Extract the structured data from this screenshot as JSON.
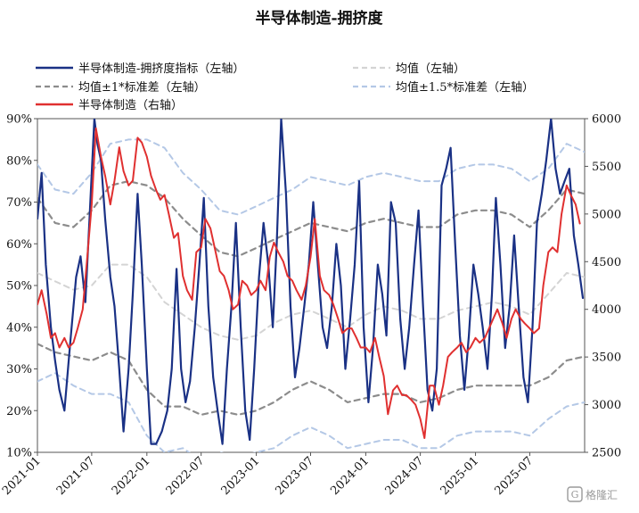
{
  "chart_data": {
    "type": "line",
    "title": "半导体制造-拥挤度",
    "xlabel": "",
    "ylabel_left": "",
    "ylabel_right": "",
    "x_ticks": [
      "2021-01",
      "2021-07",
      "2022-01",
      "2022-07",
      "2023-01",
      "2023-07",
      "2024-01",
      "2024-07",
      "2025-01",
      "2025-07"
    ],
    "x_range": [
      "2021-01-01",
      "2025-12-31"
    ],
    "y_left_ticks": [
      "10%",
      "20%",
      "30%",
      "40%",
      "50%",
      "60%",
      "70%",
      "80%",
      "90%"
    ],
    "y_left_range": [
      0.1,
      0.9
    ],
    "y_right_ticks": [
      "2500",
      "3000",
      "3500",
      "4000",
      "4500",
      "5000",
      "5500",
      "6000"
    ],
    "y_right_range": [
      2500,
      6000
    ],
    "grid": false,
    "legend_position": "top",
    "legend": [
      {
        "label": "半导体制造-拥挤度指标（左轴）",
        "color": "#1a3185",
        "style": "solid"
      },
      {
        "label": "均值（左轴）",
        "color": "#d4d4d4",
        "style": "dashed"
      },
      {
        "label": "均值±1*标准差（左轴）",
        "color": "#8c8c8c",
        "style": "dashed"
      },
      {
        "label": "均值±1.5*标准差（左轴）",
        "color": "#b4c8e6",
        "style": "dashed"
      },
      {
        "label": "半导体制造（右轴）",
        "color": "#e03030",
        "style": "solid"
      }
    ],
    "series": [
      {
        "key": "crowding",
        "name": "半导体制造-拥挤度指标（左轴）",
        "axis": "left",
        "color": "#1a3185",
        "x": [
          "2021-01-01",
          "2021-01-15",
          "2021-01-29",
          "2021-02-15",
          "2021-03-01",
          "2021-03-15",
          "2021-04-01",
          "2021-04-20",
          "2021-05-10",
          "2021-05-25",
          "2021-06-10",
          "2021-06-25",
          "2021-07-10",
          "2021-07-20",
          "2021-08-01",
          "2021-08-15",
          "2021-09-01",
          "2021-09-15",
          "2021-10-01",
          "2021-10-15",
          "2021-11-01",
          "2021-11-15",
          "2021-12-01",
          "2021-12-15",
          "2022-01-01",
          "2022-01-15",
          "2022-02-01",
          "2022-02-20",
          "2022-03-10",
          "2022-03-25",
          "2022-04-10",
          "2022-04-25",
          "2022-05-10",
          "2022-05-25",
          "2022-06-10",
          "2022-06-25",
          "2022-07-10",
          "2022-07-25",
          "2022-08-10",
          "2022-08-25",
          "2022-09-10",
          "2022-09-25",
          "2022-10-10",
          "2022-10-25",
          "2022-11-10",
          "2022-11-25",
          "2022-12-10",
          "2022-12-25",
          "2023-01-10",
          "2023-01-25",
          "2023-02-10",
          "2023-02-25",
          "2023-03-10",
          "2023-03-25",
          "2023-04-10",
          "2023-04-25",
          "2023-05-10",
          "2023-05-25",
          "2023-06-10",
          "2023-06-25",
          "2023-07-10",
          "2023-07-25",
          "2023-08-10",
          "2023-08-25",
          "2023-09-10",
          "2023-09-25",
          "2023-10-10",
          "2023-10-25",
          "2023-11-10",
          "2023-11-25",
          "2023-12-10",
          "2023-12-25",
          "2024-01-10",
          "2024-01-25",
          "2024-02-10",
          "2024-02-25",
          "2024-03-10",
          "2024-03-25",
          "2024-04-10",
          "2024-04-25",
          "2024-05-10",
          "2024-05-25",
          "2024-06-10",
          "2024-06-25",
          "2024-07-10",
          "2024-07-25",
          "2024-08-10",
          "2024-08-25",
          "2024-09-10",
          "2024-09-25",
          "2024-10-10",
          "2024-10-25",
          "2024-11-10",
          "2024-11-25",
          "2024-12-10",
          "2024-12-25",
          "2025-01-10",
          "2025-01-25",
          "2025-02-10",
          "2025-02-25",
          "2025-03-10",
          "2025-03-25",
          "2025-04-10",
          "2025-04-25",
          "2025-05-10",
          "2025-05-25",
          "2025-06-10",
          "2025-06-25",
          "2025-07-10",
          "2025-07-25",
          "2025-08-10",
          "2025-08-25",
          "2025-09-10",
          "2025-09-25",
          "2025-10-10",
          "2025-10-25",
          "2025-11-10",
          "2025-11-25",
          "2025-12-10",
          "2025-12-25"
        ],
        "values": [
          0.66,
          0.77,
          0.55,
          0.4,
          0.32,
          0.25,
          0.2,
          0.36,
          0.52,
          0.57,
          0.46,
          0.68,
          0.9,
          0.84,
          0.8,
          0.66,
          0.52,
          0.45,
          0.3,
          0.15,
          0.3,
          0.48,
          0.72,
          0.55,
          0.3,
          0.12,
          0.12,
          0.15,
          0.2,
          0.3,
          0.54,
          0.3,
          0.22,
          0.27,
          0.4,
          0.55,
          0.71,
          0.45,
          0.28,
          0.2,
          0.12,
          0.3,
          0.45,
          0.65,
          0.4,
          0.2,
          0.13,
          0.3,
          0.52,
          0.65,
          0.55,
          0.4,
          0.6,
          0.9,
          0.72,
          0.45,
          0.28,
          0.35,
          0.45,
          0.55,
          0.7,
          0.55,
          0.4,
          0.35,
          0.45,
          0.6,
          0.5,
          0.3,
          0.42,
          0.55,
          0.75,
          0.4,
          0.22,
          0.35,
          0.55,
          0.48,
          0.38,
          0.7,
          0.65,
          0.42,
          0.3,
          0.4,
          0.55,
          0.68,
          0.45,
          0.25,
          0.2,
          0.3,
          0.74,
          0.78,
          0.83,
          0.6,
          0.38,
          0.25,
          0.38,
          0.55,
          0.48,
          0.4,
          0.3,
          0.48,
          0.71,
          0.55,
          0.35,
          0.45,
          0.62,
          0.45,
          0.28,
          0.22,
          0.4,
          0.65,
          0.72,
          0.8,
          0.9,
          0.78,
          0.72,
          0.75,
          0.78,
          0.62,
          0.55,
          0.47
        ]
      },
      {
        "key": "mean",
        "name": "均值（左轴）",
        "axis": "left",
        "color": "#d4d4d4",
        "x": [
          "2021-01-01",
          "2021-03-01",
          "2021-05-01",
          "2021-07-01",
          "2021-09-01",
          "2021-11-01",
          "2022-01-01",
          "2022-03-01",
          "2022-05-01",
          "2022-07-01",
          "2022-09-01",
          "2022-11-01",
          "2023-01-01",
          "2023-03-01",
          "2023-05-01",
          "2023-07-01",
          "2023-09-01",
          "2023-11-01",
          "2024-01-01",
          "2024-03-01",
          "2024-05-01",
          "2024-07-01",
          "2024-09-01",
          "2024-11-01",
          "2025-01-01",
          "2025-03-01",
          "2025-05-01",
          "2025-07-01",
          "2025-09-01",
          "2025-11-01",
          "2025-12-31"
        ],
        "values": [
          0.53,
          0.51,
          0.49,
          0.5,
          0.55,
          0.55,
          0.52,
          0.46,
          0.43,
          0.4,
          0.38,
          0.37,
          0.38,
          0.41,
          0.43,
          0.44,
          0.42,
          0.4,
          0.43,
          0.45,
          0.44,
          0.42,
          0.42,
          0.44,
          0.45,
          0.46,
          0.45,
          0.43,
          0.48,
          0.53,
          0.52
        ]
      },
      {
        "key": "sd1_upper",
        "name": "均值±1*标准差（左轴）",
        "axis": "left",
        "color": "#8c8c8c",
        "x": [
          "2021-01-01",
          "2021-03-01",
          "2021-05-01",
          "2021-07-01",
          "2021-09-01",
          "2021-11-01",
          "2022-01-01",
          "2022-03-01",
          "2022-05-01",
          "2022-07-01",
          "2022-09-01",
          "2022-11-01",
          "2023-01-01",
          "2023-03-01",
          "2023-05-01",
          "2023-07-01",
          "2023-09-01",
          "2023-11-01",
          "2024-01-01",
          "2024-03-01",
          "2024-05-01",
          "2024-07-01",
          "2024-09-01",
          "2024-11-01",
          "2025-01-01",
          "2025-03-01",
          "2025-05-01",
          "2025-07-01",
          "2025-09-01",
          "2025-11-01",
          "2025-12-31"
        ],
        "values": [
          0.71,
          0.65,
          0.64,
          0.68,
          0.74,
          0.75,
          0.74,
          0.71,
          0.66,
          0.62,
          0.58,
          0.57,
          0.59,
          0.61,
          0.63,
          0.65,
          0.64,
          0.63,
          0.65,
          0.66,
          0.65,
          0.64,
          0.64,
          0.67,
          0.68,
          0.68,
          0.67,
          0.64,
          0.68,
          0.73,
          0.72
        ]
      },
      {
        "key": "sd1_lower",
        "name": "均值±1*标准差（左轴）",
        "axis": "left",
        "color": "#8c8c8c",
        "x": [
          "2021-01-01",
          "2021-03-01",
          "2021-05-01",
          "2021-07-01",
          "2021-09-01",
          "2021-11-01",
          "2022-01-01",
          "2022-03-01",
          "2022-05-01",
          "2022-07-01",
          "2022-09-01",
          "2022-11-01",
          "2023-01-01",
          "2023-03-01",
          "2023-05-01",
          "2023-07-01",
          "2023-09-01",
          "2023-11-01",
          "2024-01-01",
          "2024-03-01",
          "2024-05-01",
          "2024-07-01",
          "2024-09-01",
          "2024-11-01",
          "2025-01-01",
          "2025-03-01",
          "2025-05-01",
          "2025-07-01",
          "2025-09-01",
          "2025-11-01",
          "2025-12-31"
        ],
        "values": [
          0.36,
          0.34,
          0.33,
          0.32,
          0.34,
          0.32,
          0.25,
          0.21,
          0.21,
          0.19,
          0.2,
          0.19,
          0.2,
          0.22,
          0.25,
          0.27,
          0.25,
          0.22,
          0.23,
          0.24,
          0.24,
          0.22,
          0.23,
          0.25,
          0.26,
          0.26,
          0.26,
          0.26,
          0.28,
          0.32,
          0.33
        ]
      },
      {
        "key": "sd15_upper",
        "name": "均值±1.5*标准差（左轴）",
        "axis": "left",
        "color": "#b4c8e6",
        "x": [
          "2021-01-01",
          "2021-03-01",
          "2021-05-01",
          "2021-07-01",
          "2021-09-01",
          "2021-11-01",
          "2022-01-01",
          "2022-03-01",
          "2022-05-01",
          "2022-07-01",
          "2022-09-01",
          "2022-11-01",
          "2023-01-01",
          "2023-03-01",
          "2023-05-01",
          "2023-07-01",
          "2023-09-01",
          "2023-11-01",
          "2024-01-01",
          "2024-03-01",
          "2024-05-01",
          "2024-07-01",
          "2024-09-01",
          "2024-11-01",
          "2025-01-01",
          "2025-03-01",
          "2025-05-01",
          "2025-07-01",
          "2025-09-01",
          "2025-11-01",
          "2025-12-31"
        ],
        "values": [
          0.79,
          0.73,
          0.72,
          0.77,
          0.84,
          0.85,
          0.85,
          0.83,
          0.77,
          0.73,
          0.68,
          0.67,
          0.69,
          0.71,
          0.73,
          0.76,
          0.75,
          0.74,
          0.76,
          0.77,
          0.76,
          0.75,
          0.75,
          0.78,
          0.79,
          0.79,
          0.78,
          0.75,
          0.78,
          0.84,
          0.82
        ]
      },
      {
        "key": "sd15_lower",
        "name": "均值±1.5*标准差（左轴）",
        "axis": "left",
        "color": "#b4c8e6",
        "x": [
          "2021-01-01",
          "2021-03-01",
          "2021-05-01",
          "2021-07-01",
          "2021-09-01",
          "2021-11-01",
          "2022-01-01",
          "2022-03-01",
          "2022-05-01",
          "2022-07-01",
          "2022-09-01",
          "2022-11-01",
          "2023-01-01",
          "2023-03-01",
          "2023-05-01",
          "2023-07-01",
          "2023-09-01",
          "2023-11-01",
          "2024-01-01",
          "2024-03-01",
          "2024-05-01",
          "2024-07-01",
          "2024-09-01",
          "2024-11-01",
          "2025-01-01",
          "2025-03-01",
          "2025-05-01",
          "2025-07-01",
          "2025-09-01",
          "2025-11-01",
          "2025-12-31"
        ],
        "values": [
          0.27,
          0.29,
          0.26,
          0.24,
          0.24,
          0.22,
          0.14,
          0.1,
          0.11,
          0.08,
          0.1,
          0.09,
          0.1,
          0.11,
          0.14,
          0.16,
          0.14,
          0.11,
          0.12,
          0.13,
          0.13,
          0.11,
          0.11,
          0.14,
          0.15,
          0.15,
          0.15,
          0.14,
          0.18,
          0.21,
          0.22
        ]
      },
      {
        "key": "index",
        "name": "半导体制造（右轴）",
        "axis": "right",
        "color": "#e03030",
        "x": [
          "2021-01-01",
          "2021-01-15",
          "2021-02-01",
          "2021-02-15",
          "2021-03-01",
          "2021-03-15",
          "2021-04-01",
          "2021-04-15",
          "2021-05-01",
          "2021-05-15",
          "2021-06-01",
          "2021-06-15",
          "2021-07-01",
          "2021-07-15",
          "2021-08-01",
          "2021-08-15",
          "2021-09-01",
          "2021-09-15",
          "2021-10-01",
          "2021-10-15",
          "2021-11-01",
          "2021-11-15",
          "2021-12-01",
          "2021-12-15",
          "2022-01-01",
          "2022-01-15",
          "2022-02-01",
          "2022-02-15",
          "2022-03-01",
          "2022-03-15",
          "2022-04-01",
          "2022-04-15",
          "2022-05-01",
          "2022-05-15",
          "2022-06-01",
          "2022-06-15",
          "2022-07-01",
          "2022-07-15",
          "2022-08-01",
          "2022-08-15",
          "2022-09-01",
          "2022-09-15",
          "2022-10-01",
          "2022-10-15",
          "2022-11-01",
          "2022-11-15",
          "2022-12-01",
          "2022-12-15",
          "2023-01-01",
          "2023-01-15",
          "2023-02-01",
          "2023-02-15",
          "2023-03-01",
          "2023-03-15",
          "2023-04-01",
          "2023-04-15",
          "2023-05-01",
          "2023-05-15",
          "2023-06-01",
          "2023-06-15",
          "2023-07-01",
          "2023-07-15",
          "2023-08-01",
          "2023-08-15",
          "2023-09-01",
          "2023-09-15",
          "2023-10-01",
          "2023-10-15",
          "2023-11-01",
          "2023-11-15",
          "2023-12-01",
          "2023-12-15",
          "2024-01-01",
          "2024-01-15",
          "2024-02-01",
          "2024-02-15",
          "2024-03-01",
          "2024-03-15",
          "2024-04-01",
          "2024-04-15",
          "2024-05-01",
          "2024-05-15",
          "2024-06-01",
          "2024-06-15",
          "2024-07-01",
          "2024-07-15",
          "2024-08-01",
          "2024-08-15",
          "2024-09-01",
          "2024-09-15",
          "2024-10-01",
          "2024-10-15",
          "2024-11-01",
          "2024-11-15",
          "2024-12-01",
          "2024-12-15",
          "2025-01-01",
          "2025-01-15",
          "2025-02-01",
          "2025-02-15",
          "2025-03-01",
          "2025-03-15",
          "2025-04-01",
          "2025-04-15",
          "2025-05-01",
          "2025-05-15",
          "2025-06-01",
          "2025-06-15",
          "2025-07-01",
          "2025-07-15",
          "2025-08-01",
          "2025-08-15",
          "2025-09-01",
          "2025-09-15",
          "2025-10-01",
          "2025-10-15",
          "2025-11-01",
          "2025-11-15",
          "2025-12-01",
          "2025-12-15"
        ],
        "values": [
          4050,
          4200,
          3950,
          3700,
          3750,
          3600,
          3700,
          3600,
          3650,
          3800,
          4000,
          4500,
          5100,
          5900,
          5600,
          5400,
          5100,
          5350,
          5700,
          5450,
          5300,
          5350,
          5800,
          5750,
          5600,
          5400,
          5250,
          5150,
          5200,
          5000,
          4750,
          4800,
          4350,
          4200,
          4100,
          4600,
          4650,
          4950,
          4850,
          4650,
          4400,
          4350,
          4200,
          4000,
          4050,
          4300,
          4250,
          4150,
          4200,
          4300,
          4200,
          4550,
          4700,
          4600,
          4500,
          4350,
          4300,
          4200,
          4100,
          4250,
          4550,
          4950,
          4350,
          4200,
          4150,
          4050,
          3900,
          3750,
          3800,
          3800,
          3700,
          3600,
          3600,
          3550,
          3700,
          3500,
          3300,
          2900,
          3150,
          3200,
          3100,
          3100,
          3050,
          3000,
          2850,
          2650,
          3200,
          3200,
          3000,
          3200,
          3500,
          3550,
          3600,
          3650,
          3550,
          3600,
          3700,
          3650,
          3700,
          3800,
          3900,
          4000,
          3850,
          3700,
          3900,
          4000,
          3900,
          3850,
          3800,
          3750,
          3800,
          4250,
          4600,
          4650,
          4600,
          5000,
          5300,
          5200,
          5100,
          4900
        ]
      }
    ]
  },
  "watermark": {
    "text": "格隆汇",
    "icon": "logo-badge-icon"
  }
}
